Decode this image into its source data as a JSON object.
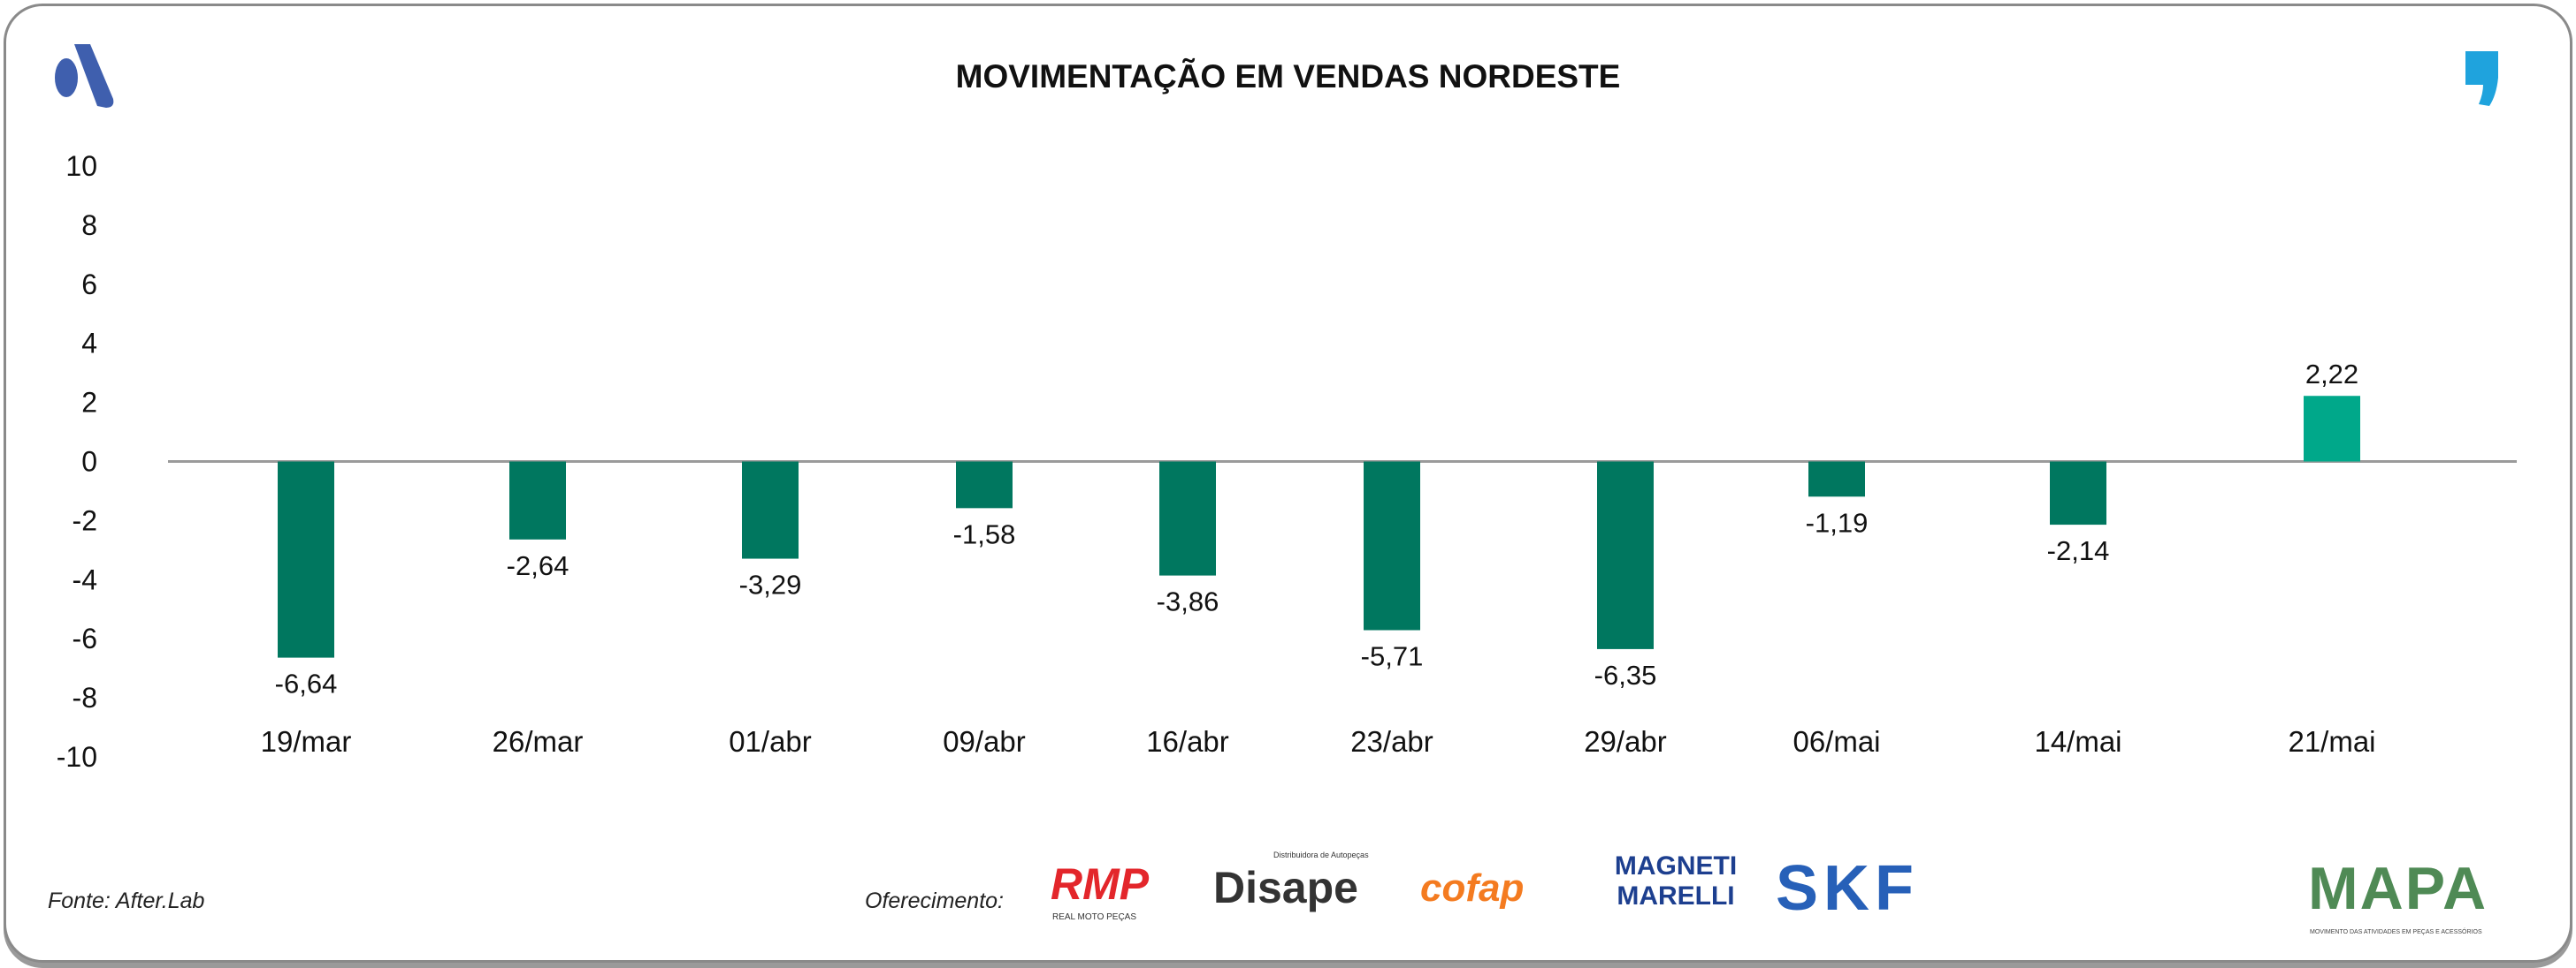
{
  "chart_data": {
    "type": "bar",
    "title": "MOVIMENTAÇÃO EM VENDAS NORDESTE",
    "categories": [
      "19/mar",
      "26/mar",
      "01/abr",
      "09/abr",
      "16/abr",
      "23/abr",
      "29/abr",
      "06/mai",
      "14/mai",
      "21/mai"
    ],
    "values": [
      -6.64,
      -2.64,
      -3.29,
      -1.58,
      -3.86,
      -5.71,
      -6.35,
      -1.19,
      -2.14,
      2.22
    ],
    "data_labels": [
      "-6,64",
      "-2,64",
      "-3,29",
      "-1,58",
      "-3,86",
      "-5,71",
      "-6,35",
      "-1,19",
      "-2,14",
      "2,22"
    ],
    "xlabel": "",
    "ylabel": "",
    "ylim": [
      -10,
      10
    ],
    "yticks": [
      "10",
      "8",
      "6",
      "4",
      "2",
      "0",
      "-2",
      "-4",
      "-6",
      "-8",
      "-10"
    ],
    "grid": false,
    "colors": {
      "negative": "#00775f",
      "positive": "#00a88a"
    }
  },
  "footer": {
    "source": "Fonte: After.Lab",
    "sponsor_label": "Oferecimento:",
    "sponsors": [
      "RMP",
      "REAL MOTO PEÇAS",
      "Disape",
      "Distribuidora de Autopeças",
      "cofap",
      "MAGNETI MARELLI",
      "SKF"
    ],
    "brand": "MAPA",
    "brand_tagline": "MOVIMENTO DAS ATIVIDADES EM PEÇAS E ACESSÓRIOS"
  }
}
